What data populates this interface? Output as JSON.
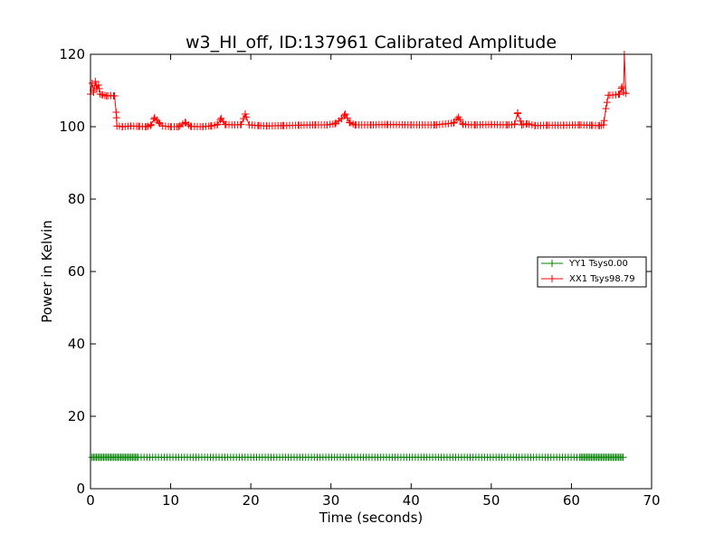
{
  "chart_data": {
    "type": "line",
    "title": "w3_HI_off, ID:137961 Calibrated Amplitude",
    "xlabel": "Time (seconds)",
    "ylabel": "Power in Kelvin",
    "xlim": [
      0,
      70
    ],
    "ylim": [
      0,
      120
    ],
    "xticks": [
      "0",
      "10",
      "20",
      "30",
      "40",
      "50",
      "60",
      "70"
    ],
    "yticks": [
      "0",
      "20",
      "40",
      "60",
      "80",
      "100",
      "120"
    ],
    "grid": false,
    "legend_position": "center-right",
    "series": [
      {
        "name": "YY1 Tsys0.00",
        "color": "#008000",
        "marker": "+",
        "points": [
          [
            0.2,
            8.7
          ],
          [
            66.5,
            8.7
          ]
        ],
        "dense_ranges": [
          [
            0.2,
            6.0
          ],
          [
            61.0,
            66.5
          ]
        ],
        "value": 8.7
      },
      {
        "name": "XX1 Tsys98.79",
        "color": "#ff0000",
        "marker": "+",
        "points": [
          [
            0.0,
            109.0
          ],
          [
            0.2,
            112.0
          ],
          [
            0.4,
            109.5
          ],
          [
            0.6,
            112.5
          ],
          [
            0.8,
            110.5
          ],
          [
            1.0,
            111.5
          ],
          [
            1.2,
            109.0
          ],
          [
            1.5,
            108.8
          ],
          [
            2.0,
            108.5
          ],
          [
            2.5,
            108.6
          ],
          [
            3.0,
            108.5
          ],
          [
            3.2,
            104.0
          ],
          [
            3.3,
            100.2
          ],
          [
            4.0,
            100.0
          ],
          [
            5.0,
            100.2
          ],
          [
            6.0,
            100.1
          ],
          [
            7.0,
            100.0
          ],
          [
            7.5,
            100.3
          ],
          [
            8.0,
            102.5
          ],
          [
            8.5,
            101.2
          ],
          [
            9.0,
            100.2
          ],
          [
            10.0,
            100.0
          ],
          [
            11.0,
            100.0
          ],
          [
            11.8,
            101.2
          ],
          [
            12.5,
            100.1
          ],
          [
            14.0,
            100.0
          ],
          [
            15.0,
            100.2
          ],
          [
            15.8,
            100.5
          ],
          [
            16.3,
            102.3
          ],
          [
            16.8,
            100.6
          ],
          [
            18.0,
            100.5
          ],
          [
            18.8,
            100.6
          ],
          [
            19.3,
            103.5
          ],
          [
            19.8,
            100.5
          ],
          [
            21.0,
            100.3
          ],
          [
            22.0,
            100.2
          ],
          [
            24.0,
            100.3
          ],
          [
            26.0,
            100.4
          ],
          [
            28.0,
            100.5
          ],
          [
            29.5,
            100.5
          ],
          [
            30.5,
            100.8
          ],
          [
            31.3,
            102.2
          ],
          [
            31.8,
            103.5
          ],
          [
            32.3,
            101.2
          ],
          [
            33.0,
            100.5
          ],
          [
            35.0,
            100.5
          ],
          [
            37.0,
            100.6
          ],
          [
            40.0,
            100.5
          ],
          [
            43.0,
            100.5
          ],
          [
            45.3,
            101.0
          ],
          [
            45.9,
            102.6
          ],
          [
            46.5,
            100.6
          ],
          [
            48.0,
            100.5
          ],
          [
            50.0,
            100.6
          ],
          [
            52.0,
            100.5
          ],
          [
            52.9,
            100.6
          ],
          [
            53.3,
            103.8
          ],
          [
            53.8,
            100.5
          ],
          [
            54.5,
            100.8
          ],
          [
            55.5,
            100.3
          ],
          [
            57.0,
            100.4
          ],
          [
            59.0,
            100.4
          ],
          [
            61.0,
            100.5
          ],
          [
            62.5,
            100.4
          ],
          [
            63.5,
            100.3
          ],
          [
            64.0,
            100.5
          ],
          [
            64.3,
            105.0
          ],
          [
            64.6,
            108.7
          ],
          [
            65.5,
            108.8
          ],
          [
            66.0,
            109.0
          ],
          [
            66.3,
            111.0
          ],
          [
            66.5,
            109.5
          ],
          [
            66.6,
            120.0
          ],
          [
            66.8,
            109.2
          ]
        ]
      }
    ]
  }
}
